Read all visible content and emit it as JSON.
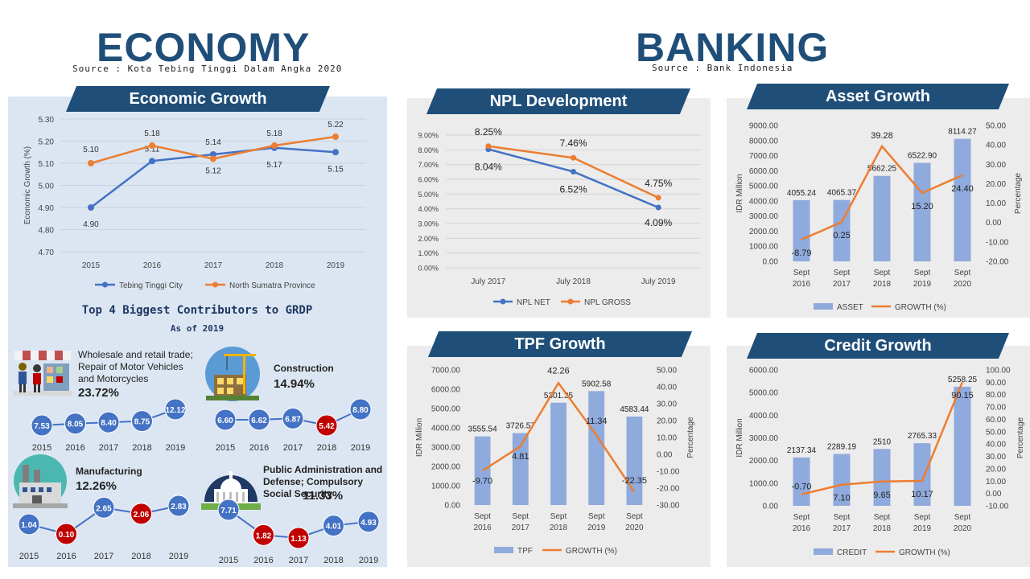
{
  "economy": {
    "title": "ECONOMY",
    "source": "Source : Kota Tebing Tinggi Dalam Angka 2020",
    "growth_banner": "Economic Growth",
    "grdp_title": "Top 4 Biggest Contributors to GRDP",
    "grdp_subtitle": "As of 2019",
    "contributors": [
      {
        "title": "Wholesale and retail trade; Repair of Motor Vehicles and Motorcycles",
        "pct": "23.72%",
        "icon": "shop-icon",
        "years": [
          "2015",
          "2016",
          "2017",
          "2018",
          "2019"
        ],
        "values": [
          "7.53",
          "8.05",
          "8.40",
          "8.75",
          "12.12"
        ],
        "highlight": [
          false,
          false,
          false,
          false,
          false
        ]
      },
      {
        "title": "Construction",
        "pct": "14.94%",
        "icon": "construction-icon",
        "years": [
          "2015",
          "2016",
          "2017",
          "2018",
          "2019"
        ],
        "values": [
          "6.60",
          "6.62",
          "6.87",
          "5.42",
          "8.80"
        ],
        "highlight": [
          false,
          false,
          false,
          true,
          false
        ]
      },
      {
        "title": "Manufacturing",
        "pct": "12.26%",
        "icon": "factory-icon",
        "years": [
          "2015",
          "2016",
          "2017",
          "2018",
          "2019"
        ],
        "values": [
          "1.04",
          "0.10",
          "2.65",
          "2.06",
          "2.83"
        ],
        "highlight": [
          false,
          true,
          false,
          true,
          false
        ]
      },
      {
        "title": "Public Administration and Defense; Compulsory Social Security",
        "pct": "11.33%",
        "icon": "capitol-icon",
        "years": [
          "2015",
          "2016",
          "2017",
          "2018",
          "2019"
        ],
        "values": [
          "7.71",
          "1.82",
          "1.13",
          "4.01",
          "4.93"
        ],
        "highlight": [
          false,
          true,
          true,
          false,
          false
        ]
      }
    ]
  },
  "banking": {
    "title": "BANKING",
    "source": "Source : Bank Indonesia"
  },
  "colors": {
    "blue": "#4472c4",
    "orange": "#ed7d31",
    "bar": "#8faadc",
    "navy": "#1f4e79",
    "red": "#c00000"
  },
  "chart_data": [
    {
      "id": "economic-growth",
      "type": "line",
      "title": "Economic Growth",
      "ylabel": "Economic Growth (%)",
      "categories": [
        "2015",
        "2016",
        "2017",
        "2018",
        "2019"
      ],
      "yticks": [
        "4.70",
        "4.80",
        "4.90",
        "5.00",
        "5.10",
        "5.20",
        "5.30"
      ],
      "ylim": [
        4.7,
        5.3
      ],
      "series": [
        {
          "name": "Tebing Tinggi City",
          "values": [
            4.9,
            5.11,
            5.14,
            5.17,
            5.15
          ],
          "labels": [
            "4.90",
            "5.11",
            "5.14",
            "5.17",
            "5.15"
          ],
          "color": "#4472c4"
        },
        {
          "name": "North Sumatra Province",
          "values": [
            5.1,
            5.18,
            5.12,
            5.18,
            5.22
          ],
          "labels": [
            "5.10",
            "5.18",
            "5.12",
            "5.18",
            "5.22"
          ],
          "color": "#ed7d31"
        }
      ]
    },
    {
      "id": "npl",
      "type": "line",
      "title": "NPL Development",
      "categories": [
        "July 2017",
        "July 2018",
        "July 2019"
      ],
      "yticks": [
        "0.00%",
        "1.00%",
        "2.00%",
        "3.00%",
        "4.00%",
        "5.00%",
        "6.00%",
        "7.00%",
        "8.00%",
        "9.00%"
      ],
      "ylim": [
        0,
        9
      ],
      "series": [
        {
          "name": "NPL NET",
          "values": [
            8.04,
            6.52,
            4.09
          ],
          "labels": [
            "8.04%",
            "6.52%",
            "4.09%"
          ],
          "color": "#4472c4"
        },
        {
          "name": "NPL GROSS",
          "values": [
            8.25,
            7.46,
            4.75
          ],
          "labels": [
            "8.25%",
            "7.46%",
            "4.75%"
          ],
          "color": "#ed7d31"
        }
      ]
    },
    {
      "id": "asset",
      "type": "bar",
      "title": "Asset Growth",
      "categories": [
        [
          "Sept",
          "2016"
        ],
        [
          "Sept",
          "2017"
        ],
        [
          "Sept",
          "2018"
        ],
        [
          "Sept",
          "2019"
        ],
        [
          "Sept",
          "2020"
        ]
      ],
      "ylabel": "IDR Million",
      "y2label": "Percentage",
      "yticks": [
        "0.00",
        "1000.00",
        "2000.00",
        "3000.00",
        "4000.00",
        "5000.00",
        "6000.00",
        "7000.00",
        "8000.00",
        "9000.00"
      ],
      "ylim": [
        0,
        9000
      ],
      "y2ticks": [
        "-20.00",
        "-10.00",
        "0.00",
        "10.00",
        "20.00",
        "30.00",
        "40.00",
        "50.00"
      ],
      "y2lim": [
        -20,
        50
      ],
      "bar": {
        "name": "ASSET",
        "values": [
          4055.24,
          4065.37,
          5662.25,
          6522.9,
          8114.27
        ],
        "labels": [
          "4055.24",
          "4065.37",
          "5662.25",
          "6522.90",
          "8114.27"
        ]
      },
      "line": {
        "name": "GROWTH (%)",
        "values": [
          -8.79,
          0.25,
          39.28,
          15.2,
          24.4
        ],
        "labels": [
          "-8.79",
          "0.25",
          "39.28",
          "15.20",
          "24.40"
        ]
      }
    },
    {
      "id": "tpf",
      "type": "bar",
      "title": "TPF Growth",
      "categories": [
        [
          "Sept",
          "2016"
        ],
        [
          "Sept",
          "2017"
        ],
        [
          "Sept",
          "2018"
        ],
        [
          "Sept",
          "2019"
        ],
        [
          "Sept",
          "2020"
        ]
      ],
      "ylabel": "IDR Million",
      "y2label": "Percentage",
      "yticks": [
        "0.00",
        "1000.00",
        "2000.00",
        "3000.00",
        "4000.00",
        "5000.00",
        "6000.00",
        "7000.00"
      ],
      "ylim": [
        0,
        7000
      ],
      "y2ticks": [
        "-30.00",
        "-20.00",
        "-10.00",
        "0.00",
        "10.00",
        "20.00",
        "30.00",
        "40.00",
        "50.00"
      ],
      "y2lim": [
        -30,
        50
      ],
      "bar": {
        "name": "TPF",
        "values": [
          3555.54,
          3726.57,
          5301.35,
          5902.58,
          4583.44
        ],
        "labels": [
          "3555.54",
          "3726.57",
          "5301.35",
          "5902.58",
          "4583.44"
        ]
      },
      "line": {
        "name": "GROWTH (%)",
        "values": [
          -9.7,
          4.81,
          42.26,
          11.34,
          -22.35
        ],
        "labels": [
          "-9.70",
          "4.81",
          "42.26",
          "11.34",
          "-22.35"
        ]
      }
    },
    {
      "id": "credit",
      "type": "bar",
      "title": "Credit Growth",
      "categories": [
        [
          "Sept",
          "2016"
        ],
        [
          "Sept",
          "2017"
        ],
        [
          "Sept",
          "2018"
        ],
        [
          "Sept",
          "2019"
        ],
        [
          "Sept",
          "2020"
        ]
      ],
      "ylabel": "IDR Million",
      "y2label": "Percentage",
      "yticks": [
        "0.00",
        "1000.00",
        "2000.00",
        "3000.00",
        "4000.00",
        "5000.00",
        "6000.00"
      ],
      "ylim": [
        0,
        6000
      ],
      "y2ticks": [
        "-10.00",
        "0.00",
        "10.00",
        "20.00",
        "30.00",
        "40.00",
        "50.00",
        "60.00",
        "70.00",
        "80.00",
        "90.00",
        "100.00"
      ],
      "y2lim": [
        -10,
        100
      ],
      "bar": {
        "name": "CREDIT",
        "values": [
          2137.34,
          2289.19,
          2510,
          2765.33,
          5258.25
        ],
        "labels": [
          "2137.34",
          "2289.19",
          "2510",
          "2765.33",
          "5258.25"
        ]
      },
      "line": {
        "name": "GROWTH (%)",
        "values": [
          -0.7,
          7.1,
          9.65,
          10.17,
          90.15
        ],
        "labels": [
          "-0.70",
          "7.10",
          "9.65",
          "10.17",
          "90.15"
        ]
      }
    }
  ]
}
